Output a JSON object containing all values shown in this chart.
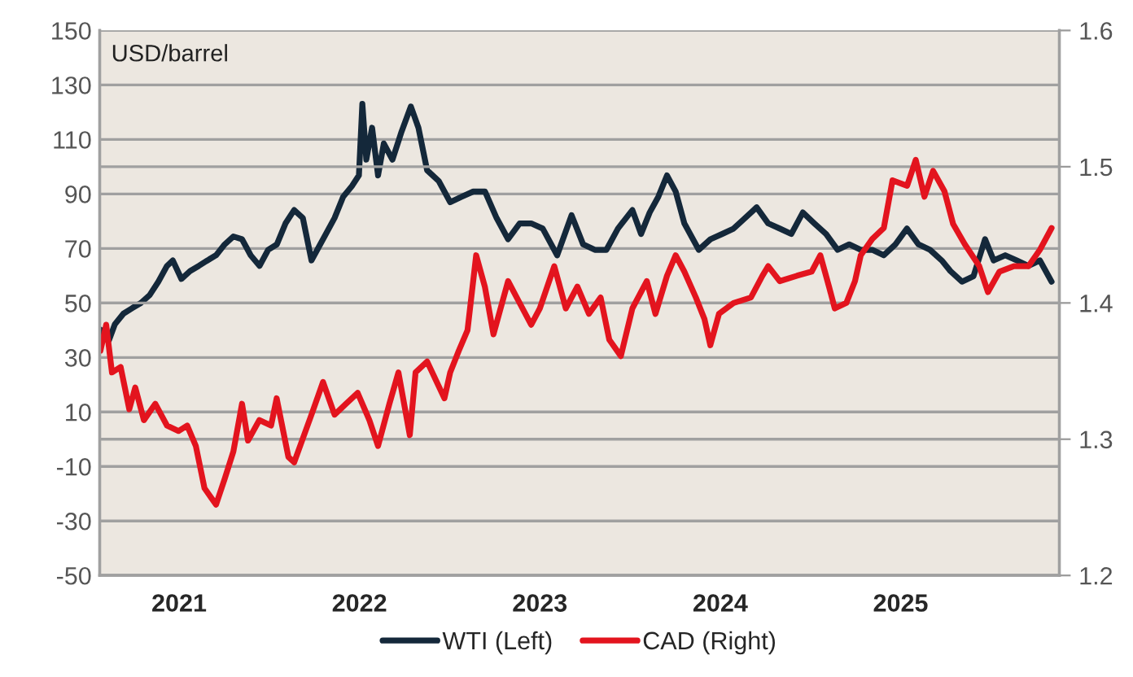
{
  "chart_data": {
    "type": "line",
    "annotations": [
      "USD/barrel"
    ],
    "xlim": [
      2020.72,
      2026.04
    ],
    "xticks": [
      {
        "value": 2021.16,
        "label": "2021"
      },
      {
        "value": 2022.16,
        "label": "2022"
      },
      {
        "value": 2023.16,
        "label": "2023"
      },
      {
        "value": 2024.16,
        "label": "2024"
      },
      {
        "value": 2025.16,
        "label": "2025"
      }
    ],
    "ylim": [
      -50,
      150
    ],
    "yticks": [
      -50,
      -30,
      -10,
      10,
      30,
      50,
      70,
      90,
      110,
      130,
      150
    ],
    "y2lim": [
      1.2,
      1.6
    ],
    "y2ticks": [
      1.2,
      1.3,
      1.4,
      1.5,
      1.6
    ],
    "grid": "y",
    "legend": "bottom",
    "line_style": "solid",
    "series": [
      {
        "name": "WTI (Left)",
        "color": "#14283a",
        "x": [
          2020.724,
          2020.772,
          2020.804,
          2020.852,
          2020.9,
          2020.948,
          2020.997,
          2021.045,
          2021.093,
          2021.125,
          2021.173,
          2021.221,
          2021.269,
          2021.317,
          2021.365,
          2021.413,
          2021.461,
          2021.509,
          2021.557,
          2021.606,
          2021.654,
          2021.702,
          2021.75,
          2021.798,
          2021.846,
          2021.894,
          2021.926,
          2021.974,
          2022.022,
          2022.07,
          2022.118,
          2022.157,
          2022.176,
          2022.198,
          2022.23,
          2022.263,
          2022.295,
          2022.343,
          2022.391,
          2022.445,
          2022.487,
          2022.535,
          2022.599,
          2022.663,
          2022.727,
          2022.791,
          2022.856,
          2022.92,
          2022.984,
          2023.048,
          2023.112,
          2023.176,
          2023.256,
          2023.336,
          2023.4,
          2023.465,
          2023.529,
          2023.593,
          2023.673,
          2023.721,
          2023.769,
          2023.817,
          2023.865,
          2023.913,
          2023.961,
          2023.993,
          2024.041,
          2024.106,
          2024.17,
          2024.234,
          2024.298,
          2024.362,
          2024.426,
          2024.49,
          2024.554,
          2024.618,
          2024.682,
          2024.747,
          2024.811,
          2024.875,
          2024.939,
          2025.003,
          2025.067,
          2025.131,
          2025.195,
          2025.259,
          2025.323,
          2025.388,
          2025.436,
          2025.5,
          2025.564,
          2025.628,
          2025.676,
          2025.74,
          2025.804,
          2025.868,
          2025.932,
          2025.997
        ],
        "values": [
          40.2,
          36.4,
          42.2,
          46.1,
          48.1,
          50,
          52.9,
          57.8,
          63.6,
          65.6,
          58.8,
          61.7,
          63.6,
          65.6,
          67.5,
          71.5,
          74.4,
          73.4,
          67.5,
          63.6,
          69.5,
          71.5,
          79.2,
          84.1,
          81.2,
          65.6,
          69.5,
          75.3,
          81.2,
          89,
          92.9,
          96.8,
          123.1,
          102.6,
          114.3,
          96.8,
          108.5,
          102.6,
          112.4,
          122.1,
          114.3,
          98.7,
          94.8,
          87,
          89,
          90.9,
          90.9,
          81.2,
          73.4,
          79.2,
          79.2,
          77.3,
          67.5,
          82.2,
          71.5,
          69.5,
          69.5,
          77.3,
          84.1,
          75.3,
          83.2,
          89,
          96.8,
          90.9,
          79.2,
          75.3,
          69.5,
          73.4,
          75.3,
          77.3,
          81.2,
          85.1,
          79.2,
          77.3,
          75.3,
          83.2,
          79.2,
          75.3,
          69.5,
          71.5,
          69.5,
          69.5,
          67.5,
          71.5,
          77.3,
          71.5,
          69.5,
          65.6,
          61.7,
          57.8,
          59.8,
          73.4,
          65.6,
          67.5,
          65.6,
          63.6,
          65.6,
          57.8
        ]
      },
      {
        "name": "CAD (Right)",
        "color": "#e3141e",
        "axis": "y2",
        "x": [
          2020.724,
          2020.756,
          2020.788,
          2020.836,
          2020.884,
          2020.917,
          2020.965,
          2021.028,
          2021.093,
          2021.157,
          2021.205,
          2021.253,
          2021.301,
          2021.365,
          2021.413,
          2021.461,
          2021.509,
          2021.542,
          2021.605,
          2021.67,
          2021.701,
          2021.766,
          2021.798,
          2021.894,
          2021.958,
          2022.022,
          2022.086,
          2022.15,
          2022.215,
          2022.263,
          2022.326,
          2022.376,
          2022.439,
          2022.471,
          2022.535,
          2022.631,
          2022.663,
          2022.711,
          2022.759,
          2022.807,
          2022.855,
          2022.903,
          2022.984,
          2023.048,
          2023.112,
          2023.16,
          2023.24,
          2023.304,
          2023.368,
          2023.432,
          2023.497,
          2023.545,
          2023.609,
          2023.673,
          2023.753,
          2023.801,
          2023.865,
          2023.913,
          2023.961,
          2024.025,
          2024.073,
          2024.105,
          2024.153,
          2024.234,
          2024.33,
          2024.394,
          2024.426,
          2024.49,
          2024.586,
          2024.667,
          2024.715,
          2024.763,
          2024.795,
          2024.859,
          2024.907,
          2024.939,
          2025.003,
          2025.067,
          2025.115,
          2025.196,
          2025.244,
          2025.292,
          2025.34,
          2025.403,
          2025.451,
          2025.516,
          2025.596,
          2025.644,
          2025.708,
          2025.788,
          2025.869,
          2025.932,
          2025.997
        ],
        "values": [
          1.365,
          1.384,
          1.349,
          1.353,
          1.322,
          1.338,
          1.314,
          1.326,
          1.31,
          1.306,
          1.31,
          1.295,
          1.264,
          1.252,
          1.271,
          1.291,
          1.326,
          1.299,
          1.314,
          1.31,
          1.33,
          1.287,
          1.283,
          1.318,
          1.342,
          1.318,
          1.326,
          1.334,
          1.314,
          1.295,
          1.326,
          1.349,
          1.303,
          1.349,
          1.357,
          1.33,
          1.349,
          1.365,
          1.38,
          1.435,
          1.412,
          1.377,
          1.416,
          1.4,
          1.384,
          1.396,
          1.427,
          1.396,
          1.412,
          1.392,
          1.404,
          1.373,
          1.361,
          1.396,
          1.416,
          1.392,
          1.42,
          1.435,
          1.423,
          1.404,
          1.388,
          1.369,
          1.392,
          1.4,
          1.404,
          1.42,
          1.427,
          1.416,
          1.42,
          1.423,
          1.435,
          1.412,
          1.396,
          1.4,
          1.416,
          1.435,
          1.447,
          1.455,
          1.49,
          1.486,
          1.505,
          1.478,
          1.497,
          1.482,
          1.458,
          1.443,
          1.427,
          1.408,
          1.423,
          1.427,
          1.427,
          1.439,
          1.455
        ]
      }
    ]
  }
}
